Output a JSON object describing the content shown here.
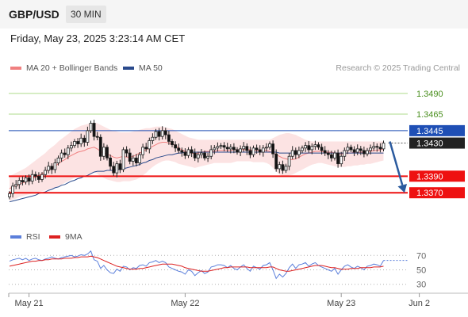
{
  "header": {
    "symbol": "GBP/USD",
    "timeframe": "30 MIN"
  },
  "datetime": "Friday, May 23, 2025 3:23:14 AM CET",
  "credit": "Research © 2025 Trading Central",
  "colors": {
    "resistance": "#6cbf2e",
    "resistance_bg": "#e6f2dc",
    "pivot": "#1f4fb5",
    "support": "#ee1111",
    "current": "#222222",
    "bollinger": "#fbdede",
    "ma20": "#f08080",
    "ma50": "#2a4a8c",
    "rsi": "#5b7fdb",
    "rsi_ma": "#dd2222",
    "candle_up": "#ffffff",
    "candle_down": "#111111",
    "arrow": "#2a5a9e"
  },
  "chart_data": [
    {
      "type": "candlestick",
      "title": "",
      "legend": [
        {
          "name": "MA 20 + Bollinger Bands",
          "color": "#f08080"
        },
        {
          "name": "MA 50",
          "color": "#2a4a8c"
        }
      ],
      "ylim": [
        1.3352,
        1.351
      ],
      "levels": [
        {
          "value": 1.349,
          "label": "1.3490",
          "kind": "resistance"
        },
        {
          "value": 1.3465,
          "label": "1.3465",
          "kind": "resistance"
        },
        {
          "value": 1.3445,
          "label": "1.3445",
          "kind": "pivot"
        },
        {
          "value": 1.343,
          "label": "1.3430",
          "kind": "current"
        },
        {
          "value": 1.339,
          "label": "1.3390",
          "kind": "support"
        },
        {
          "value": 1.337,
          "label": "1.3370",
          "kind": "support"
        }
      ],
      "x_ticks": [
        "May 21",
        "May 22",
        "May 23",
        "Jun 2"
      ],
      "x_tick_index": [
        6,
        54,
        102,
        126
      ],
      "closes": [
        1.3369,
        1.3378,
        1.338,
        1.3385,
        1.3383,
        1.3388,
        1.3384,
        1.3392,
        1.339,
        1.3386,
        1.3392,
        1.3397,
        1.3402,
        1.3398,
        1.3406,
        1.3412,
        1.3418,
        1.3416,
        1.3424,
        1.3427,
        1.3432,
        1.3429,
        1.3436,
        1.3431,
        1.3445,
        1.3454,
        1.3438,
        1.3437,
        1.3414,
        1.3425,
        1.3412,
        1.3402,
        1.3394,
        1.3405,
        1.3398,
        1.3422,
        1.3418,
        1.3408,
        1.3412,
        1.3406,
        1.3416,
        1.3425,
        1.3423,
        1.3433,
        1.3437,
        1.3444,
        1.3438,
        1.3445,
        1.344,
        1.3432,
        1.3428,
        1.3424,
        1.3421,
        1.3419,
        1.3415,
        1.3422,
        1.3418,
        1.3412,
        1.3416,
        1.3418,
        1.3412,
        1.3414,
        1.3422,
        1.3424,
        1.3426,
        1.3427,
        1.3425,
        1.3423,
        1.3425,
        1.3422,
        1.3419,
        1.3423,
        1.3426,
        1.3421,
        1.3416,
        1.3424,
        1.3422,
        1.3419,
        1.3424,
        1.3425,
        1.3429,
        1.3417,
        1.3399,
        1.3404,
        1.3397,
        1.3402,
        1.3414,
        1.3421,
        1.3416,
        1.3421,
        1.3424,
        1.3427,
        1.3422,
        1.3426,
        1.3428,
        1.3425,
        1.3421,
        1.3418,
        1.3416,
        1.3412,
        1.3418,
        1.3405,
        1.3414,
        1.3421,
        1.3425,
        1.3422,
        1.3419,
        1.3423,
        1.3421,
        1.3417,
        1.3421,
        1.3424,
        1.3426,
        1.3425,
        1.3423,
        1.343
      ],
      "ma20": [
        1.3375,
        1.3377,
        1.3378,
        1.338,
        1.3382,
        1.3383,
        1.3385,
        1.3387,
        1.3389,
        1.3391,
        1.3393,
        1.3395,
        1.3398,
        1.34,
        1.3402,
        1.3405,
        1.3408,
        1.341,
        1.3413,
        1.3415,
        1.3417,
        1.3419,
        1.342,
        1.3421,
        1.3423,
        1.3424,
        1.3425,
        1.3423,
        1.342,
        1.3418,
        1.3417,
        1.3415,
        1.3413,
        1.3412,
        1.3413,
        1.3414,
        1.3413,
        1.3413,
        1.3414,
        1.3416,
        1.3418,
        1.342,
        1.3422,
        1.3424,
        1.3426,
        1.3428,
        1.343,
        1.3431,
        1.3431,
        1.343,
        1.3429,
        1.3427,
        1.3424,
        1.3422,
        1.342,
        1.3419,
        1.3418,
        1.3417,
        1.3418,
        1.3419,
        1.342,
        1.342,
        1.342,
        1.342,
        1.3421,
        1.3421,
        1.3421,
        1.3421,
        1.3421,
        1.3422,
        1.3422,
        1.3422,
        1.3422,
        1.3422,
        1.3422,
        1.3421,
        1.3421,
        1.3421,
        1.3421,
        1.3421,
        1.342,
        1.3418,
        1.3416,
        1.3414,
        1.3412,
        1.3411,
        1.341,
        1.341,
        1.3411,
        1.3413,
        1.3415,
        1.3417,
        1.3418,
        1.3419,
        1.342,
        1.342,
        1.342,
        1.3419,
        1.3419,
        1.3419,
        1.3418,
        1.3417,
        1.3417,
        1.3417,
        1.3418,
        1.3418,
        1.3419,
        1.3419,
        1.3419,
        1.3419,
        1.342,
        1.342,
        1.3421,
        1.3421,
        1.3422,
        1.3423
      ],
      "bb_upper": [
        1.339,
        1.3392,
        1.3394,
        1.3396,
        1.3398,
        1.34,
        1.3403,
        1.3406,
        1.3409,
        1.3412,
        1.3415,
        1.3418,
        1.3422,
        1.3425,
        1.3428,
        1.3432,
        1.3435,
        1.3438,
        1.3441,
        1.3444,
        1.3447,
        1.3449,
        1.3451,
        1.3452,
        1.3453,
        1.3454,
        1.3455,
        1.3454,
        1.3452,
        1.345,
        1.3448,
        1.3446,
        1.3445,
        1.3444,
        1.3443,
        1.3443,
        1.3443,
        1.3443,
        1.3444,
        1.3445,
        1.3446,
        1.3447,
        1.3448,
        1.3448,
        1.3449,
        1.345,
        1.345,
        1.345,
        1.3449,
        1.3448,
        1.3447,
        1.3445,
        1.3443,
        1.3441,
        1.3439,
        1.3437,
        1.3436,
        1.3435,
        1.3434,
        1.3434,
        1.3434,
        1.3434,
        1.3434,
        1.3434,
        1.3434,
        1.3434,
        1.3434,
        1.3434,
        1.3434,
        1.3434,
        1.3434,
        1.3434,
        1.3434,
        1.3434,
        1.3434,
        1.3434,
        1.3434,
        1.3434,
        1.3434,
        1.3434,
        1.3434,
        1.3436,
        1.3438,
        1.344,
        1.3441,
        1.3442,
        1.3442,
        1.3441,
        1.344,
        1.3438,
        1.3436,
        1.3434,
        1.3433,
        1.3432,
        1.3432,
        1.3432,
        1.3432,
        1.3432,
        1.3432,
        1.3432,
        1.3432,
        1.3432,
        1.3432,
        1.3432,
        1.3432,
        1.3432,
        1.3432,
        1.3432,
        1.3432,
        1.3432,
        1.3432,
        1.3432,
        1.3432,
        1.3432,
        1.3432,
        1.3432
      ],
      "bb_lower": [
        1.336,
        1.3362,
        1.3363,
        1.3365,
        1.3366,
        1.3367,
        1.3368,
        1.3369,
        1.337,
        1.3371,
        1.3372,
        1.3373,
        1.3374,
        1.3375,
        1.3376,
        1.3378,
        1.338,
        1.3382,
        1.3384,
        1.3386,
        1.3388,
        1.3389,
        1.339,
        1.3391,
        1.3392,
        1.3393,
        1.3395,
        1.3393,
        1.339,
        1.3388,
        1.3386,
        1.3385,
        1.3384,
        1.3383,
        1.3383,
        1.3384,
        1.3384,
        1.3384,
        1.3385,
        1.3386,
        1.3388,
        1.3391,
        1.3394,
        1.3398,
        1.3401,
        1.3404,
        1.3406,
        1.3408,
        1.3409,
        1.3409,
        1.3408,
        1.3407,
        1.3405,
        1.3404,
        1.3403,
        1.3402,
        1.3401,
        1.34,
        1.3401,
        1.3402,
        1.3403,
        1.3404,
        1.3405,
        1.3406,
        1.3406,
        1.3406,
        1.3406,
        1.3406,
        1.3406,
        1.3407,
        1.3408,
        1.3408,
        1.3408,
        1.3408,
        1.3408,
        1.3407,
        1.3407,
        1.3407,
        1.3407,
        1.3406,
        1.3404,
        1.34,
        1.3396,
        1.3392,
        1.339,
        1.339,
        1.3391,
        1.3392,
        1.3394,
        1.3396,
        1.3398,
        1.34,
        1.3402,
        1.3404,
        1.3405,
        1.3406,
        1.3406,
        1.3405,
        1.3404,
        1.3403,
        1.3402,
        1.3401,
        1.3401,
        1.3401,
        1.3402,
        1.3402,
        1.3403,
        1.3403,
        1.3404,
        1.3404,
        1.3405,
        1.3405,
        1.3406,
        1.3407,
        1.3408,
        1.3409
      ],
      "ma50": [
        1.3359,
        1.336,
        1.3361,
        1.3362,
        1.3363,
        1.3364,
        1.3365,
        1.3366,
        1.3367,
        1.3369,
        1.337,
        1.3371,
        1.3373,
        1.3374,
        1.3376,
        1.3377,
        1.3379,
        1.338,
        1.3382,
        1.3384,
        1.3385,
        1.3387,
        1.3388,
        1.339,
        1.3391,
        1.3393,
        1.3395,
        1.3396,
        1.3396,
        1.3396,
        1.3397,
        1.3397,
        1.3397,
        1.3398,
        1.3398,
        1.3399,
        1.34,
        1.3401,
        1.3402,
        1.3403,
        1.3404,
        1.3406,
        1.3407,
        1.3409,
        1.341,
        1.3412,
        1.3413,
        1.3414,
        1.3415,
        1.3416,
        1.3416,
        1.3417,
        1.3418,
        1.3418,
        1.3419,
        1.3419,
        1.3419,
        1.3419,
        1.3419,
        1.3419,
        1.3419,
        1.3419,
        1.3419,
        1.3419,
        1.3419,
        1.3419,
        1.3419,
        1.3419,
        1.3419,
        1.3419,
        1.3419,
        1.3419,
        1.3419,
        1.3419,
        1.3419,
        1.3419,
        1.3419,
        1.3419,
        1.3419,
        1.3419,
        1.3419,
        1.3419,
        1.3419,
        1.3418,
        1.3418,
        1.3418,
        1.3418,
        1.3418,
        1.3418,
        1.3418,
        1.3418,
        1.3418,
        1.3418,
        1.3418,
        1.3418,
        1.3418,
        1.3418,
        1.3418,
        1.3418,
        1.3418,
        1.3418,
        1.3418,
        1.3418,
        1.3418,
        1.3418,
        1.3418,
        1.3418,
        1.3418,
        1.3418,
        1.3418,
        1.3418,
        1.3418,
        1.3418,
        1.3418,
        1.3418,
        1.3418
      ],
      "forecast": {
        "from": 1.343,
        "to": 1.337,
        "style": "arrow"
      }
    },
    {
      "type": "line",
      "title": "",
      "legend": [
        {
          "name": "RSI",
          "color": "#5b7fdb"
        },
        {
          "name": "9MA",
          "color": "#dd2222"
        }
      ],
      "ylim": [
        22,
        78
      ],
      "y_ticks": [
        70,
        50,
        30
      ],
      "rsi": [
        62,
        64,
        65,
        66,
        64,
        66,
        63,
        65,
        66,
        64,
        63,
        65,
        66,
        68,
        66,
        65,
        67,
        68,
        69,
        70,
        68,
        69,
        71,
        70,
        72,
        76,
        64,
        62,
        52,
        56,
        50,
        46,
        45,
        51,
        48,
        55,
        54,
        50,
        53,
        52,
        56,
        57,
        55,
        60,
        61,
        63,
        60,
        62,
        60,
        54,
        52,
        50,
        48,
        47,
        44,
        50,
        48,
        42,
        46,
        49,
        45,
        47,
        54,
        55,
        57,
        57,
        56,
        53,
        56,
        52,
        50,
        54,
        57,
        52,
        48,
        55,
        53,
        51,
        56,
        57,
        60,
        50,
        38,
        44,
        40,
        45,
        53,
        58,
        52,
        57,
        58,
        60,
        55,
        58,
        60,
        56,
        54,
        52,
        50,
        48,
        52,
        44,
        50,
        55,
        57,
        54,
        52,
        55,
        53,
        50,
        55,
        56,
        58,
        57,
        55,
        63
      ],
      "rsi_ma": [
        55,
        56,
        57,
        58,
        59,
        60,
        61,
        62,
        62,
        63,
        63,
        64,
        64,
        65,
        65,
        65,
        65,
        66,
        66,
        66,
        67,
        67,
        68,
        68,
        68,
        69,
        68,
        67,
        65,
        63,
        61,
        59,
        57,
        55,
        54,
        53,
        52,
        51,
        51,
        51,
        52,
        52,
        53,
        54,
        55,
        56,
        57,
        58,
        58,
        58,
        58,
        57,
        56,
        55,
        53,
        52,
        51,
        50,
        49,
        48,
        48,
        48,
        49,
        50,
        51,
        52,
        53,
        53,
        54,
        54,
        54,
        54,
        54,
        54,
        53,
        53,
        53,
        53,
        53,
        53,
        54,
        54,
        52,
        50,
        49,
        48,
        48,
        49,
        50,
        51,
        52,
        53,
        54,
        55,
        56,
        56,
        56,
        55,
        54,
        53,
        53,
        52,
        51,
        51,
        51,
        52,
        52,
        52,
        53,
        53,
        53,
        53,
        54,
        54,
        54,
        55
      ]
    }
  ]
}
